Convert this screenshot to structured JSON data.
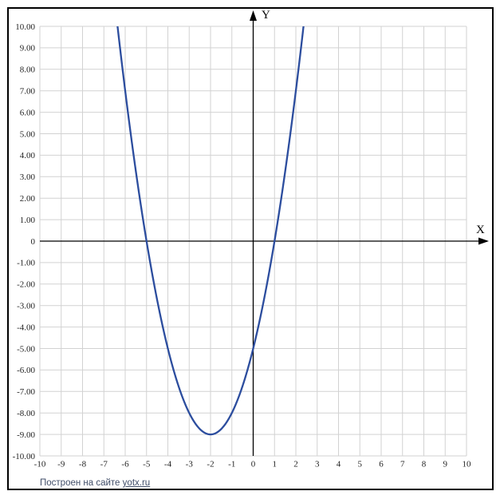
{
  "page": {
    "background": "#ffffff",
    "frame_border_color": "#000000"
  },
  "watermark": {
    "prefix": "Построен на сайте",
    "link": "yotx.ru",
    "color": "#414e69"
  },
  "chart_data": {
    "type": "line",
    "title": "",
    "xlabel": "X",
    "ylabel": "Y",
    "xlim": [
      -10,
      10
    ],
    "ylim": [
      -10,
      10
    ],
    "grid": true,
    "grid_color": "#d2d2d2",
    "axis_color": "#000000",
    "x_ticks": [
      "-10",
      "-9",
      "-8",
      "-7",
      "-6",
      "-5",
      "-4",
      "-3",
      "-2",
      "-1",
      "0",
      "1",
      "2",
      "3",
      "4",
      "5",
      "6",
      "7",
      "8",
      "9",
      "10"
    ],
    "y_ticks": [
      "10.00",
      "9.00",
      "8.00",
      "7.00",
      "6.00",
      "5.00",
      "4.00",
      "3.00",
      "2.00",
      "1.00",
      "0",
      "-1.00",
      "-2.00",
      "-3.00",
      "-4.00",
      "-5.00",
      "-6.00",
      "-7.00",
      "-8.00",
      "-9.00",
      "-10.00"
    ],
    "series": [
      {
        "name": "parabola",
        "color": "#2c4d9e",
        "stroke_width": 2.3,
        "function": {
          "type": "polynomial",
          "coefficients": [
            1,
            4,
            -5
          ]
        },
        "vertex": [
          -2,
          -9
        ],
        "x_intercepts": [
          -5,
          1
        ],
        "y_intercept": -5,
        "points": [
          [
            -6.36,
            10
          ],
          [
            -6,
            7
          ],
          [
            -5.5,
            3.25
          ],
          [
            -5,
            0
          ],
          [
            -4.5,
            -2.75
          ],
          [
            -4,
            -5
          ],
          [
            -3.5,
            -6.75
          ],
          [
            -3,
            -8
          ],
          [
            -2.5,
            -8.75
          ],
          [
            -2,
            -9
          ],
          [
            -1.5,
            -8.75
          ],
          [
            -1,
            -8
          ],
          [
            -0.5,
            -6.75
          ],
          [
            0,
            -5
          ],
          [
            0.5,
            -2.75
          ],
          [
            1,
            0
          ],
          [
            1.5,
            3.25
          ],
          [
            2,
            7
          ],
          [
            2.36,
            10
          ]
        ]
      }
    ]
  }
}
